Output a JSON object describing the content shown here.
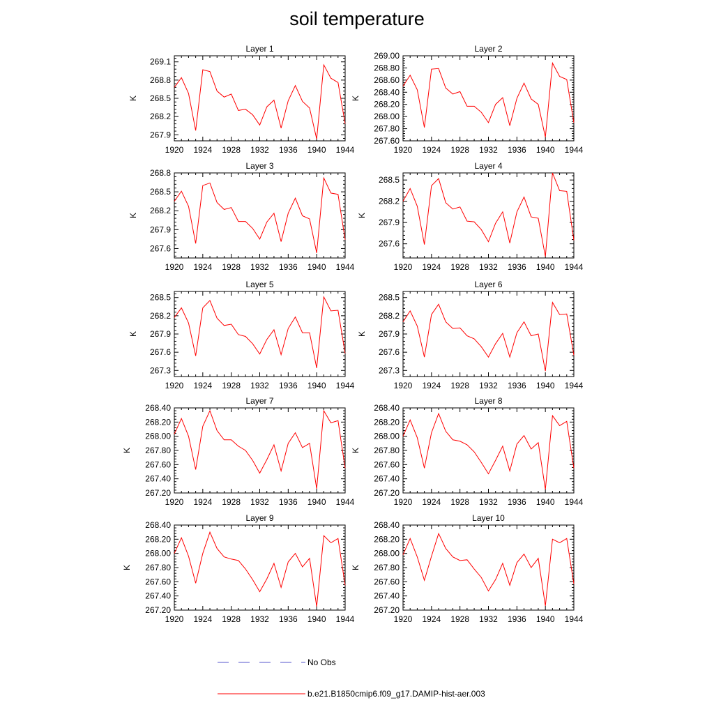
{
  "title": "soil temperature",
  "legend": {
    "placement": "bottom",
    "entries": [
      {
        "label": "No Obs",
        "color": "#5555cc",
        "style": "dashed"
      },
      {
        "label": "b.e21.B1850cmip6.f09_g17.DAMIP-hist-aer.003",
        "color": "#ff0000",
        "style": "solid"
      }
    ]
  },
  "chart_data": [
    {
      "type": "line",
      "title": "Layer 1",
      "ylabel": "K",
      "xlim": [
        1920,
        1944
      ],
      "ylim": [
        267.8,
        269.2
      ],
      "xticks": [
        "1920",
        "1924",
        "1928",
        "1932",
        "1936",
        "1940",
        "1944"
      ],
      "yticks": [
        "267.9",
        "268.2",
        "268.5",
        "268.8",
        "269.1"
      ],
      "x": [
        1920,
        1921,
        1922,
        1923,
        1924,
        1925,
        1926,
        1927,
        1928,
        1929,
        1930,
        1931,
        1932,
        1933,
        1934,
        1935,
        1936,
        1937,
        1938,
        1939,
        1940,
        1941,
        1942,
        1943,
        1944
      ],
      "series": [
        {
          "name": "b.e21.B1850cmip6.f09_g17.DAMIP-hist-aer.003",
          "color": "#ff0000",
          "values": [
            268.68,
            268.84,
            268.58,
            267.97,
            268.97,
            268.94,
            268.62,
            268.52,
            268.57,
            268.3,
            268.32,
            268.23,
            268.06,
            268.36,
            268.47,
            268.01,
            268.46,
            268.71,
            268.45,
            268.34,
            267.83,
            269.05,
            268.83,
            268.76,
            268.08
          ]
        }
      ]
    },
    {
      "type": "line",
      "title": "Layer 2",
      "ylabel": "K",
      "xlim": [
        1920,
        1944
      ],
      "ylim": [
        267.6,
        269.0
      ],
      "xticks": [
        "1920",
        "1924",
        "1928",
        "1932",
        "1936",
        "1940",
        "1944"
      ],
      "yticks": [
        "267.60",
        "267.80",
        "268.00",
        "268.20",
        "268.40",
        "268.60",
        "268.80",
        "269.00"
      ],
      "x": [
        1920,
        1921,
        1922,
        1923,
        1924,
        1925,
        1926,
        1927,
        1928,
        1929,
        1930,
        1931,
        1932,
        1933,
        1934,
        1935,
        1936,
        1937,
        1938,
        1939,
        1940,
        1941,
        1942,
        1943,
        1944
      ],
      "series": [
        {
          "name": "b.e21.B1850cmip6.f09_g17.DAMIP-hist-aer.003",
          "color": "#ff0000",
          "values": [
            268.5,
            268.68,
            268.44,
            267.82,
            268.78,
            268.79,
            268.47,
            268.37,
            268.41,
            268.17,
            268.17,
            268.07,
            267.9,
            268.2,
            268.31,
            267.85,
            268.3,
            268.55,
            268.29,
            268.2,
            267.66,
            268.88,
            268.66,
            268.61,
            267.9
          ]
        }
      ]
    },
    {
      "type": "line",
      "title": "Layer 3",
      "ylabel": "K",
      "xlim": [
        1920,
        1944
      ],
      "ylim": [
        267.45,
        268.8
      ],
      "xticks": [
        "1920",
        "1924",
        "1928",
        "1932",
        "1936",
        "1940",
        "1944"
      ],
      "yticks": [
        "267.6",
        "267.9",
        "268.2",
        "268.5",
        "268.8"
      ],
      "x": [
        1920,
        1921,
        1922,
        1923,
        1924,
        1925,
        1926,
        1927,
        1928,
        1929,
        1930,
        1931,
        1932,
        1933,
        1934,
        1935,
        1936,
        1937,
        1938,
        1939,
        1940,
        1941,
        1942,
        1943,
        1944
      ],
      "series": [
        {
          "name": "b.e21.B1850cmip6.f09_g17.DAMIP-hist-aer.003",
          "color": "#ff0000",
          "values": [
            268.35,
            268.51,
            268.27,
            267.68,
            268.6,
            268.64,
            268.33,
            268.22,
            268.25,
            268.03,
            268.03,
            267.92,
            267.75,
            268.02,
            268.16,
            267.71,
            268.16,
            268.4,
            268.12,
            268.07,
            267.53,
            268.72,
            268.48,
            268.46,
            267.74
          ]
        }
      ]
    },
    {
      "type": "line",
      "title": "Layer 4",
      "ylabel": "K",
      "xlim": [
        1920,
        1944
      ],
      "ylim": [
        267.4,
        268.6
      ],
      "xticks": [
        "1920",
        "1924",
        "1928",
        "1932",
        "1936",
        "1940",
        "1944"
      ],
      "yticks": [
        "267.6",
        "267.9",
        "268.2",
        "268.5"
      ],
      "x": [
        1920,
        1921,
        1922,
        1923,
        1924,
        1925,
        1926,
        1927,
        1928,
        1929,
        1930,
        1931,
        1932,
        1933,
        1934,
        1935,
        1936,
        1937,
        1938,
        1939,
        1940,
        1941,
        1942,
        1943,
        1944
      ],
      "series": [
        {
          "name": "b.e21.B1850cmip6.f09_g17.DAMIP-hist-aer.003",
          "color": "#ff0000",
          "values": [
            268.2,
            268.38,
            268.13,
            267.59,
            268.42,
            268.52,
            268.18,
            268.09,
            268.12,
            267.92,
            267.91,
            267.8,
            267.63,
            267.89,
            268.05,
            267.61,
            268.05,
            268.26,
            267.98,
            267.96,
            267.42,
            268.6,
            268.35,
            268.34,
            267.65
          ]
        }
      ]
    },
    {
      "type": "line",
      "title": "Layer 5",
      "ylabel": "K",
      "xlim": [
        1920,
        1944
      ],
      "ylim": [
        267.2,
        268.6
      ],
      "xticks": [
        "1920",
        "1924",
        "1928",
        "1932",
        "1936",
        "1940",
        "1944"
      ],
      "yticks": [
        "267.3",
        "267.6",
        "267.9",
        "268.2",
        "268.5"
      ],
      "x": [
        1920,
        1921,
        1922,
        1923,
        1924,
        1925,
        1926,
        1927,
        1928,
        1929,
        1930,
        1931,
        1932,
        1933,
        1934,
        1935,
        1936,
        1937,
        1938,
        1939,
        1940,
        1941,
        1942,
        1943,
        1944
      ],
      "series": [
        {
          "name": "b.e21.B1850cmip6.f09_g17.DAMIP-hist-aer.003",
          "color": "#ff0000",
          "values": [
            268.17,
            268.33,
            268.08,
            267.54,
            268.33,
            268.45,
            268.16,
            268.04,
            268.06,
            267.89,
            267.86,
            267.74,
            267.57,
            267.81,
            267.97,
            267.56,
            267.99,
            268.18,
            267.92,
            267.92,
            267.34,
            268.51,
            268.28,
            268.29,
            267.58
          ]
        }
      ]
    },
    {
      "type": "line",
      "title": "Layer 6",
      "ylabel": "K",
      "xlim": [
        1920,
        1944
      ],
      "ylim": [
        267.2,
        268.6
      ],
      "xticks": [
        "1920",
        "1924",
        "1928",
        "1932",
        "1936",
        "1940",
        "1944"
      ],
      "yticks": [
        "267.3",
        "267.6",
        "267.9",
        "268.2",
        "268.5"
      ],
      "x": [
        1920,
        1921,
        1922,
        1923,
        1924,
        1925,
        1926,
        1927,
        1928,
        1929,
        1930,
        1931,
        1932,
        1933,
        1934,
        1935,
        1936,
        1937,
        1938,
        1939,
        1940,
        1941,
        1942,
        1943,
        1944
      ],
      "series": [
        {
          "name": "b.e21.B1850cmip6.f09_g17.DAMIP-hist-aer.003",
          "color": "#ff0000",
          "values": [
            268.1,
            268.28,
            268.03,
            267.52,
            268.22,
            268.39,
            268.1,
            267.99,
            268.0,
            267.87,
            267.82,
            267.69,
            267.52,
            267.74,
            267.91,
            267.52,
            267.92,
            268.1,
            267.87,
            267.9,
            267.29,
            268.42,
            268.22,
            268.23,
            267.55
          ]
        }
      ]
    },
    {
      "type": "line",
      "title": "Layer 7",
      "ylabel": "K",
      "xlim": [
        1920,
        1944
      ],
      "ylim": [
        267.2,
        268.4
      ],
      "xticks": [
        "1920",
        "1924",
        "1928",
        "1932",
        "1936",
        "1940",
        "1944"
      ],
      "yticks": [
        "267.20",
        "267.40",
        "267.60",
        "267.80",
        "268.00",
        "268.20",
        "268.40"
      ],
      "x": [
        1920,
        1921,
        1922,
        1923,
        1924,
        1925,
        1926,
        1927,
        1928,
        1929,
        1930,
        1931,
        1932,
        1933,
        1934,
        1935,
        1936,
        1937,
        1938,
        1939,
        1940,
        1941,
        1942,
        1943,
        1944
      ],
      "series": [
        {
          "name": "b.e21.B1850cmip6.f09_g17.DAMIP-hist-aer.003",
          "color": "#ff0000",
          "values": [
            268.03,
            268.25,
            268.0,
            267.53,
            268.14,
            268.36,
            268.08,
            267.95,
            267.95,
            267.86,
            267.8,
            267.66,
            267.48,
            267.67,
            267.88,
            267.51,
            267.9,
            268.05,
            267.84,
            267.9,
            267.26,
            268.36,
            268.19,
            268.22,
            267.55
          ]
        }
      ]
    },
    {
      "type": "line",
      "title": "Layer 8",
      "ylabel": "K",
      "xlim": [
        1920,
        1944
      ],
      "ylim": [
        267.2,
        268.4
      ],
      "xticks": [
        "1920",
        "1924",
        "1928",
        "1932",
        "1936",
        "1940",
        "1944"
      ],
      "yticks": [
        "267.20",
        "267.40",
        "267.60",
        "267.80",
        "268.00",
        "268.20",
        "268.40"
      ],
      "x": [
        1920,
        1921,
        1922,
        1923,
        1924,
        1925,
        1926,
        1927,
        1928,
        1929,
        1930,
        1931,
        1932,
        1933,
        1934,
        1935,
        1936,
        1937,
        1938,
        1939,
        1940,
        1941,
        1942,
        1943,
        1944
      ],
      "series": [
        {
          "name": "b.e21.B1850cmip6.f09_g17.DAMIP-hist-aer.003",
          "color": "#ff0000",
          "values": [
            268.0,
            268.23,
            267.98,
            267.55,
            268.05,
            268.32,
            268.07,
            267.95,
            267.93,
            267.88,
            267.78,
            267.63,
            267.47,
            267.66,
            267.86,
            267.51,
            267.89,
            268.01,
            267.82,
            267.91,
            267.25,
            268.29,
            268.15,
            268.21,
            267.55
          ]
        }
      ]
    },
    {
      "type": "line",
      "title": "Layer 9",
      "ylabel": "K",
      "xlim": [
        1920,
        1944
      ],
      "ylim": [
        267.2,
        268.4
      ],
      "xticks": [
        "1920",
        "1924",
        "1928",
        "1932",
        "1936",
        "1940",
        "1944"
      ],
      "yticks": [
        "267.20",
        "267.40",
        "267.60",
        "267.80",
        "268.00",
        "268.20",
        "268.40"
      ],
      "x": [
        1920,
        1921,
        1922,
        1923,
        1924,
        1925,
        1926,
        1927,
        1928,
        1929,
        1930,
        1931,
        1932,
        1933,
        1934,
        1935,
        1936,
        1937,
        1938,
        1939,
        1940,
        1941,
        1942,
        1943,
        1944
      ],
      "series": [
        {
          "name": "b.e21.B1850cmip6.f09_g17.DAMIP-hist-aer.003",
          "color": "#ff0000",
          "values": [
            268.0,
            268.22,
            267.96,
            267.58,
            268.0,
            268.3,
            268.07,
            267.95,
            267.92,
            267.9,
            267.78,
            267.63,
            267.46,
            267.64,
            267.86,
            267.52,
            267.88,
            268.0,
            267.81,
            267.93,
            267.25,
            268.25,
            268.15,
            268.21,
            267.55
          ]
        }
      ]
    },
    {
      "type": "line",
      "title": "Layer 10",
      "ylabel": "K",
      "xlim": [
        1920,
        1944
      ],
      "ylim": [
        267.2,
        268.4
      ],
      "xticks": [
        "1920",
        "1924",
        "1928",
        "1932",
        "1936",
        "1940",
        "1944"
      ],
      "yticks": [
        "267.20",
        "267.40",
        "267.60",
        "267.80",
        "268.00",
        "268.20",
        "268.40"
      ],
      "x": [
        1920,
        1921,
        1922,
        1923,
        1924,
        1925,
        1926,
        1927,
        1928,
        1929,
        1930,
        1931,
        1932,
        1933,
        1934,
        1935,
        1936,
        1937,
        1938,
        1939,
        1940,
        1941,
        1942,
        1943,
        1944
      ],
      "series": [
        {
          "name": "b.e21.B1850cmip6.f09_g17.DAMIP-hist-aer.003",
          "color": "#ff0000",
          "values": [
            267.98,
            268.21,
            267.95,
            267.62,
            267.96,
            268.28,
            268.07,
            267.95,
            267.9,
            267.91,
            267.78,
            267.66,
            267.47,
            267.63,
            267.86,
            267.55,
            267.87,
            267.99,
            267.8,
            267.93,
            267.26,
            268.2,
            268.15,
            268.21,
            267.57
          ]
        }
      ]
    }
  ]
}
